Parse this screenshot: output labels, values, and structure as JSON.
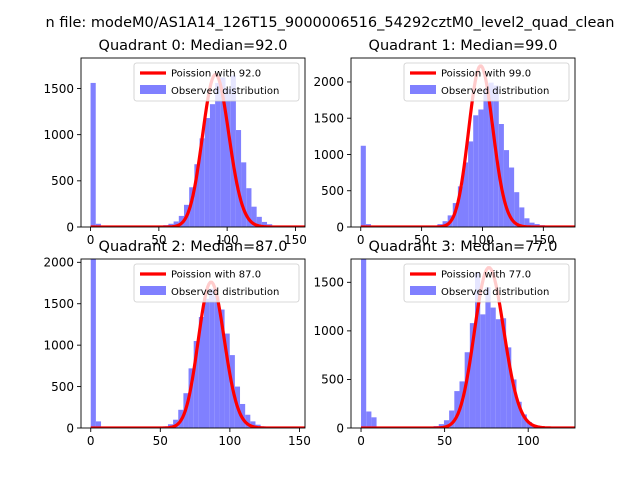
{
  "figure": {
    "suptitle": "n file: modeM0/AS1A14_126T15_9000006516_54292cztM0_level2_quad_clean"
  },
  "chart_data": [
    {
      "type": "histogram",
      "title": "Quadrant 0: Median=92.0",
      "xlim": [
        -7,
        157
      ],
      "ylim": [
        0,
        1830
      ],
      "xticks": [
        0,
        50,
        100,
        150
      ],
      "yticks": [
        0,
        500,
        1000,
        1500
      ],
      "bin_width": 3.8,
      "bin_starts": [
        0,
        3.8,
        7.6,
        11.4,
        15.2,
        19,
        22.8,
        26.6,
        30.4,
        34.2,
        38,
        41.8,
        45.6,
        49.4,
        53.2,
        57,
        60.8,
        64.6,
        68.4,
        72.2,
        76,
        79.8,
        83.6,
        87.4,
        91.2,
        95,
        98.8,
        102.6,
        106.4,
        110.2,
        114,
        117.8,
        121.6,
        125.4,
        129.2,
        133,
        136.8,
        140.6,
        144.4,
        148.2
      ],
      "counts": [
        1560,
        35,
        5,
        4,
        4,
        4,
        4,
        4,
        4,
        4,
        4,
        5,
        6,
        8,
        20,
        35,
        60,
        120,
        240,
        430,
        680,
        960,
        1180,
        1330,
        1560,
        1620,
        1500,
        1640,
        1050,
        700,
        420,
        220,
        110,
        55,
        30,
        15,
        8,
        5,
        3,
        2
      ],
      "poisson_mean": 92.0,
      "poisson_peak": 1650,
      "legend": [
        "Poission with 92.0",
        "Observed distribution"
      ]
    },
    {
      "type": "histogram",
      "title": "Quadrant 1: Median=99.0",
      "xlim": [
        -8,
        176
      ],
      "ylim": [
        0,
        2330
      ],
      "xticks": [
        0,
        50,
        100,
        150
      ],
      "yticks": [
        0,
        500,
        1000,
        1500,
        2000
      ],
      "bin_width": 4.2,
      "bin_starts": [
        0,
        4.2,
        8.4,
        12.6,
        16.8,
        21,
        25.2,
        29.4,
        33.6,
        37.8,
        42,
        46.2,
        50.4,
        54.6,
        58.8,
        63,
        67.2,
        71.4,
        75.6,
        79.8,
        84,
        88.2,
        92.4,
        96.6,
        100.8,
        105,
        109.2,
        113.4,
        117.6,
        121.8,
        126,
        130.2,
        134.4,
        138.6,
        142.8,
        147,
        151.2,
        155.4,
        159.6,
        163.8
      ],
      "counts": [
        1120,
        40,
        5,
        4,
        4,
        4,
        4,
        4,
        4,
        4,
        4,
        5,
        6,
        10,
        18,
        40,
        80,
        160,
        330,
        560,
        890,
        1180,
        1540,
        1620,
        1900,
        1990,
        1950,
        1420,
        1060,
        820,
        480,
        270,
        120,
        60,
        40,
        25,
        15,
        10,
        5,
        2
      ],
      "poisson_mean": 99.0,
      "poisson_peak": 2220,
      "legend": [
        "Poission with 99.0",
        "Observed distribution"
      ]
    },
    {
      "type": "histogram",
      "title": "Quadrant 2: Median=87.0",
      "xlim": [
        -7,
        154
      ],
      "ylim": [
        0,
        2040
      ],
      "xticks": [
        0,
        50,
        100,
        150
      ],
      "yticks": [
        0,
        500,
        1000,
        1500,
        2000
      ],
      "bin_width": 3.7,
      "bin_starts": [
        0,
        3.7,
        7.4,
        11.1,
        14.8,
        18.5,
        22.2,
        25.9,
        29.6,
        33.3,
        37,
        40.7,
        44.4,
        48.1,
        51.8,
        55.5,
        59.2,
        62.9,
        66.6,
        70.3,
        74,
        77.7,
        81.4,
        85.1,
        88.8,
        92.5,
        96.2,
        99.9,
        103.6,
        107.3,
        111,
        114.7,
        118.4,
        122.1,
        125.8,
        129.5,
        133.2,
        136.9,
        140.6,
        144.3
      ],
      "counts": [
        2040,
        80,
        5,
        4,
        4,
        4,
        4,
        4,
        4,
        4,
        4,
        5,
        6,
        8,
        20,
        45,
        100,
        220,
        420,
        720,
        1050,
        1340,
        1560,
        1680,
        1590,
        1430,
        1140,
        880,
        500,
        290,
        160,
        80,
        40,
        20,
        10,
        6,
        4,
        3,
        2,
        2
      ],
      "poisson_mean": 87.0,
      "poisson_peak": 1760,
      "legend": [
        "Poission with 87.0",
        "Observed distribution"
      ]
    },
    {
      "type": "histogram",
      "title": "Quadrant 3: Median=77.0",
      "xlim": [
        -6,
        128
      ],
      "ylim": [
        0,
        1740
      ],
      "xticks": [
        0,
        50,
        100
      ],
      "yticks": [
        0,
        500,
        1000,
        1500
      ],
      "bin_width": 3.1,
      "bin_starts": [
        0,
        3.1,
        6.2,
        9.3,
        12.4,
        15.5,
        18.6,
        21.7,
        24.8,
        27.9,
        31,
        34.1,
        37.2,
        40.3,
        43.4,
        46.5,
        49.6,
        52.7,
        55.8,
        58.9,
        62,
        65.1,
        68.2,
        71.3,
        74.4,
        77.5,
        80.6,
        83.7,
        86.8,
        89.9,
        93,
        96.1,
        99.2,
        102.3,
        105.4,
        108.5,
        111.6,
        114.7,
        117.8
      ],
      "counts": [
        1740,
        170,
        110,
        5,
        4,
        4,
        4,
        4,
        4,
        4,
        4,
        5,
        6,
        10,
        20,
        40,
        80,
        180,
        380,
        480,
        780,
        1080,
        1600,
        1170,
        1450,
        1240,
        1120,
        1130,
        830,
        500,
        270,
        140,
        60,
        30,
        15,
        8,
        5,
        3,
        2
      ],
      "poisson_mean": 77.0,
      "poisson_peak": 1650,
      "legend": [
        "Poission with 77.0",
        "Observed distribution"
      ]
    }
  ],
  "style": {
    "bar_color": "#8080ff",
    "line_color": "#ff0000",
    "axis_color": "#000000",
    "text_color": "#000000",
    "legend_border": "#cccccc",
    "background": "#ffffff"
  }
}
